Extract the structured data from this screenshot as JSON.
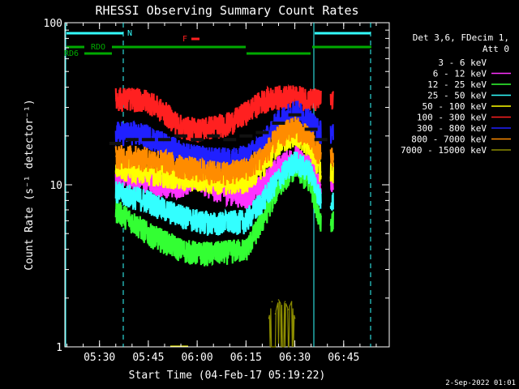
{
  "chart_data": {
    "type": "line",
    "title": "RHESSI Observing Summary Count Rates",
    "xlabel": "Start Time (04-Feb-17 05:19:22)",
    "ylabel": "Count Rate (s⁻¹ detector⁻¹)",
    "y_scale": "log",
    "ylim": [
      1,
      100
    ],
    "xlim": [
      "05:19:22",
      "06:59:00"
    ],
    "x_ticks": [
      "05:30",
      "05:45",
      "06:00",
      "06:15",
      "06:30",
      "06:45"
    ],
    "y_ticks": [
      "1",
      "10",
      "100"
    ],
    "grid": false,
    "legend_position": "right",
    "legend_header": [
      "Det 3,6, FDecim 1,",
      "Att 0"
    ],
    "series": [
      {
        "name": "3 - 6 keV",
        "color": "#000000",
        "x": [
          "05:35",
          "05:40",
          "05:45",
          "05:50",
          "05:55",
          "06:00",
          "06:05",
          "06:10",
          "06:15",
          "06:20",
          "06:25",
          "06:30",
          "06:35",
          "06:38"
        ],
        "y": [
          18,
          19,
          19,
          19,
          20,
          19,
          20,
          19,
          20,
          21,
          24,
          27,
          22,
          19
        ]
      },
      {
        "name": "6 - 12 keV",
        "color": "#ff33ff",
        "x": [
          "05:35",
          "05:40",
          "05:45",
          "05:50",
          "05:55",
          "06:00",
          "06:05",
          "06:10",
          "06:15",
          "06:20",
          "06:25",
          "06:30",
          "06:35",
          "06:38"
        ],
        "y": [
          11,
          11,
          10.5,
          10,
          10,
          11,
          9.5,
          9,
          8.5,
          10,
          13,
          15,
          13,
          10
        ]
      },
      {
        "name": "12 - 25 keV",
        "color": "#33ff33",
        "x": [
          "05:35",
          "05:40",
          "05:45",
          "05:50",
          "05:55",
          "06:00",
          "06:05",
          "06:10",
          "06:15",
          "06:20",
          "06:25",
          "06:30",
          "06:35",
          "06:38"
        ],
        "y": [
          7,
          6,
          5,
          4.5,
          4,
          3.8,
          3.8,
          3.9,
          4,
          6,
          10,
          13,
          10,
          6
        ]
      },
      {
        "name": "25 - 50 keV",
        "color": "#33ffff",
        "x": [
          "05:35",
          "05:40",
          "05:45",
          "05:50",
          "05:55",
          "06:00",
          "06:05",
          "06:10",
          "06:15",
          "06:20",
          "06:25",
          "06:30",
          "06:35",
          "06:38"
        ],
        "y": [
          9,
          8.5,
          8,
          7,
          6.5,
          6,
          5.8,
          5.9,
          6,
          8,
          11,
          14,
          12,
          8
        ]
      },
      {
        "name": "50 - 100 keV",
        "color": "#ffff00",
        "x": [
          "05:35",
          "05:40",
          "05:45",
          "05:50",
          "05:55",
          "06:00",
          "06:05",
          "06:10",
          "06:15",
          "06:20",
          "06:25",
          "06:30",
          "06:35",
          "06:38"
        ],
        "y": [
          13,
          12.5,
          12,
          11.5,
          11,
          11,
          10.5,
          10.5,
          10.5,
          13,
          18,
          21,
          17,
          12
        ]
      },
      {
        "name": "100 - 300 keV",
        "color": "#ff2020",
        "x": [
          "05:35",
          "05:40",
          "05:45",
          "05:50",
          "05:55",
          "06:00",
          "06:05",
          "06:10",
          "06:15",
          "06:20",
          "06:25",
          "06:30",
          "06:35",
          "06:38"
        ],
        "y": [
          34,
          34,
          33,
          28,
          23,
          22,
          23,
          24,
          28,
          33,
          35,
          35,
          34,
          33
        ]
      },
      {
        "name": "300 - 800 keV",
        "color": "#2020ff",
        "x": [
          "05:35",
          "05:40",
          "05:45",
          "05:50",
          "05:55",
          "06:00",
          "06:05",
          "06:10",
          "06:15",
          "06:20",
          "06:25",
          "06:30",
          "06:35",
          "06:38"
        ],
        "y": [
          21,
          21,
          20,
          18,
          16,
          15,
          14.5,
          14.5,
          15,
          18,
          25,
          29,
          25,
          21
        ]
      },
      {
        "name": "800 - 7000 keV",
        "color": "#ff8c00",
        "x": [
          "05:35",
          "05:40",
          "05:45",
          "05:50",
          "05:55",
          "06:00",
          "06:05",
          "06:10",
          "06:15",
          "06:20",
          "06:25",
          "06:30",
          "06:35",
          "06:38"
        ],
        "y": [
          15,
          15,
          14.5,
          14,
          13,
          12.5,
          12,
          12,
          12.5,
          15,
          20,
          23,
          19,
          15
        ]
      },
      {
        "name": "7000 - 15000 keV",
        "color": "#8c8c00",
        "x": [
          "06:22",
          "06:23",
          "06:24",
          "06:25",
          "06:26",
          "06:27",
          "06:28",
          "06:29",
          "06:30"
        ],
        "y": [
          1.5,
          1.9,
          1.6,
          1.95,
          1.8,
          1.9,
          1.7,
          1.9,
          1.5
        ]
      }
    ],
    "annotations": [
      {
        "label": "N",
        "color": "#33ffff"
      },
      {
        "label": "F",
        "color": "#ff2020"
      },
      {
        "label": "RDO",
        "color": "#00aa00"
      },
      {
        "label": "RD6",
        "color": "#00aa00"
      }
    ],
    "footer": "2-Sep-2022 01:01"
  }
}
